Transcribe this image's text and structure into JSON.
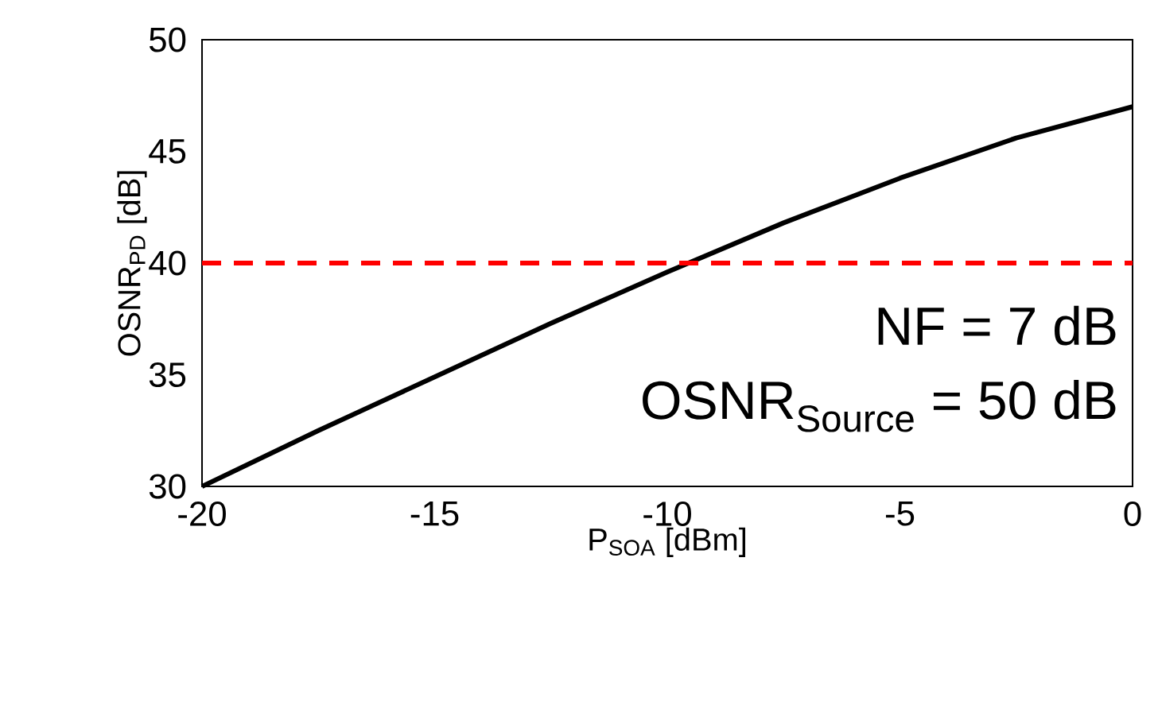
{
  "chart_data": {
    "type": "line",
    "xlabel": "P$_{SOA}$ [dBm]",
    "ylabel": "OSNR$_{PD}$ [dB]",
    "x": [
      -20,
      -17.5,
      -15,
      -12.5,
      -10,
      -7.5,
      -5,
      -2.5,
      0
    ],
    "series": [
      {
        "color": "#000000",
        "line_style": "solid",
        "values": [
          30.0,
          32.5,
          34.9,
          37.3,
          39.6,
          41.8,
          43.8,
          45.6,
          47.0
        ]
      }
    ],
    "xlim": [
      -20,
      0
    ],
    "ylim": [
      30,
      50
    ],
    "xticks": [
      -20,
      -15,
      -10,
      -5,
      0
    ],
    "yticks": [
      30,
      35,
      40,
      45,
      50
    ],
    "ref_lines": [
      {
        "axis": "y",
        "value": 40,
        "color": "#ff0000",
        "line_style": "dashed"
      }
    ],
    "annotations": [
      "NF = 7 dB",
      "OSNR$_{Source}$ = 50 dB"
    ]
  }
}
